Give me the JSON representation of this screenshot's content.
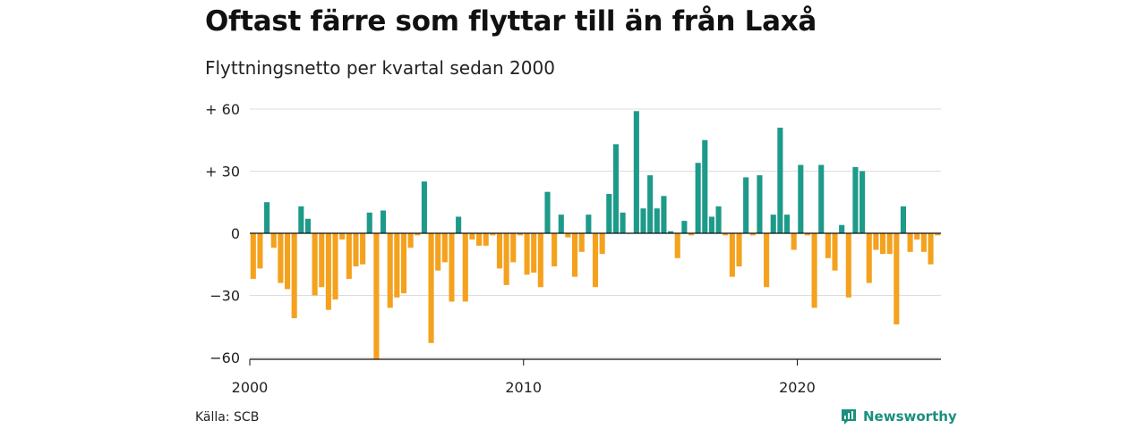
{
  "title": "Oftast färre som flyttar till än från Laxå",
  "subtitle": "Flyttningsnetto per kvartal sedan 2000",
  "source": "Källa: SCB",
  "brand": "Newsworthy",
  "colors": {
    "positive": "#1e9a8a",
    "negative": "#f4a21e",
    "grid": "#dddddd",
    "axis": "#111111"
  },
  "chart_data": {
    "type": "bar",
    "xlabel": "",
    "ylabel": "",
    "ylim": [
      -62,
      62
    ],
    "yticks": [
      {
        "value": 60,
        "label": "+ 60"
      },
      {
        "value": 30,
        "label": "+ 30"
      },
      {
        "value": 0,
        "label": "0"
      },
      {
        "value": -30,
        "label": "−30"
      },
      {
        "value": -60,
        "label": "−60"
      }
    ],
    "xticks": [
      {
        "label": "2000",
        "year": 2000
      },
      {
        "label": "2010",
        "year": 2010
      },
      {
        "label": "2020",
        "year": 2020
      }
    ],
    "start_year": 2000,
    "grid": true,
    "categories": [
      "2000 Q1",
      "2000 Q2",
      "2000 Q3",
      "2000 Q4",
      "2001 Q1",
      "2001 Q2",
      "2001 Q3",
      "2001 Q4",
      "2002 Q1",
      "2002 Q2",
      "2002 Q3",
      "2002 Q4",
      "2003 Q1",
      "2003 Q2",
      "2003 Q3",
      "2003 Q4",
      "2004 Q1",
      "2004 Q2",
      "2004 Q3",
      "2004 Q4",
      "2005 Q1",
      "2005 Q2",
      "2005 Q3",
      "2005 Q4",
      "2006 Q1",
      "2006 Q2",
      "2006 Q3",
      "2006 Q4",
      "2007 Q1",
      "2007 Q2",
      "2007 Q3",
      "2007 Q4",
      "2008 Q1",
      "2008 Q2",
      "2008 Q3",
      "2008 Q4",
      "2009 Q1",
      "2009 Q2",
      "2009 Q3",
      "2009 Q4",
      "2010 Q1",
      "2010 Q2",
      "2010 Q3",
      "2010 Q4",
      "2011 Q1",
      "2011 Q2",
      "2011 Q3",
      "2011 Q4",
      "2012 Q1",
      "2012 Q2",
      "2012 Q3",
      "2012 Q4",
      "2013 Q1",
      "2013 Q2",
      "2013 Q3",
      "2013 Q4",
      "2014 Q1",
      "2014 Q2",
      "2014 Q3",
      "2014 Q4",
      "2015 Q1",
      "2015 Q2",
      "2015 Q3",
      "2015 Q4",
      "2016 Q1",
      "2016 Q2",
      "2016 Q3",
      "2016 Q4",
      "2017 Q1",
      "2017 Q2",
      "2017 Q3",
      "2017 Q4",
      "2018 Q1",
      "2018 Q2",
      "2018 Q3",
      "2018 Q4",
      "2019 Q1",
      "2019 Q2",
      "2019 Q3",
      "2019 Q4",
      "2020 Q1",
      "2020 Q2",
      "2020 Q3",
      "2020 Q4",
      "2021 Q1",
      "2021 Q2",
      "2021 Q3",
      "2021 Q4",
      "2022 Q1",
      "2022 Q2",
      "2022 Q3",
      "2022 Q4",
      "2023 Q1",
      "2023 Q2",
      "2023 Q3",
      "2023 Q4",
      "2024 Q1",
      "2024 Q2",
      "2024 Q3",
      "2024 Q4",
      "2025 Q1"
    ],
    "values": [
      -22,
      -17,
      15,
      -7,
      -24,
      -27,
      -41,
      13,
      7,
      -30,
      -26,
      -37,
      -32,
      -3,
      -22,
      -16,
      -15,
      10,
      -61,
      11,
      -36,
      -31,
      -29,
      -7,
      -1,
      25,
      -53,
      -18,
      -14,
      -33,
      8,
      -33,
      -3,
      -6,
      -6,
      -1,
      -17,
      -25,
      -14,
      -1,
      -20,
      -19,
      -26,
      20,
      -16,
      9,
      -2,
      -21,
      -9,
      9,
      -26,
      -10,
      19,
      43,
      10,
      0,
      59,
      12,
      28,
      12,
      18,
      1,
      -12,
      6,
      -1,
      34,
      45,
      8,
      13,
      -1,
      -21,
      -16,
      27,
      -1,
      28,
      -26,
      9,
      51,
      9,
      -8,
      33,
      -1,
      -36,
      33,
      -12,
      -18,
      4,
      -31,
      32,
      30,
      -24,
      -8,
      -10,
      -10,
      -44,
      13,
      -9,
      -3,
      -9,
      -15,
      -1
    ]
  }
}
